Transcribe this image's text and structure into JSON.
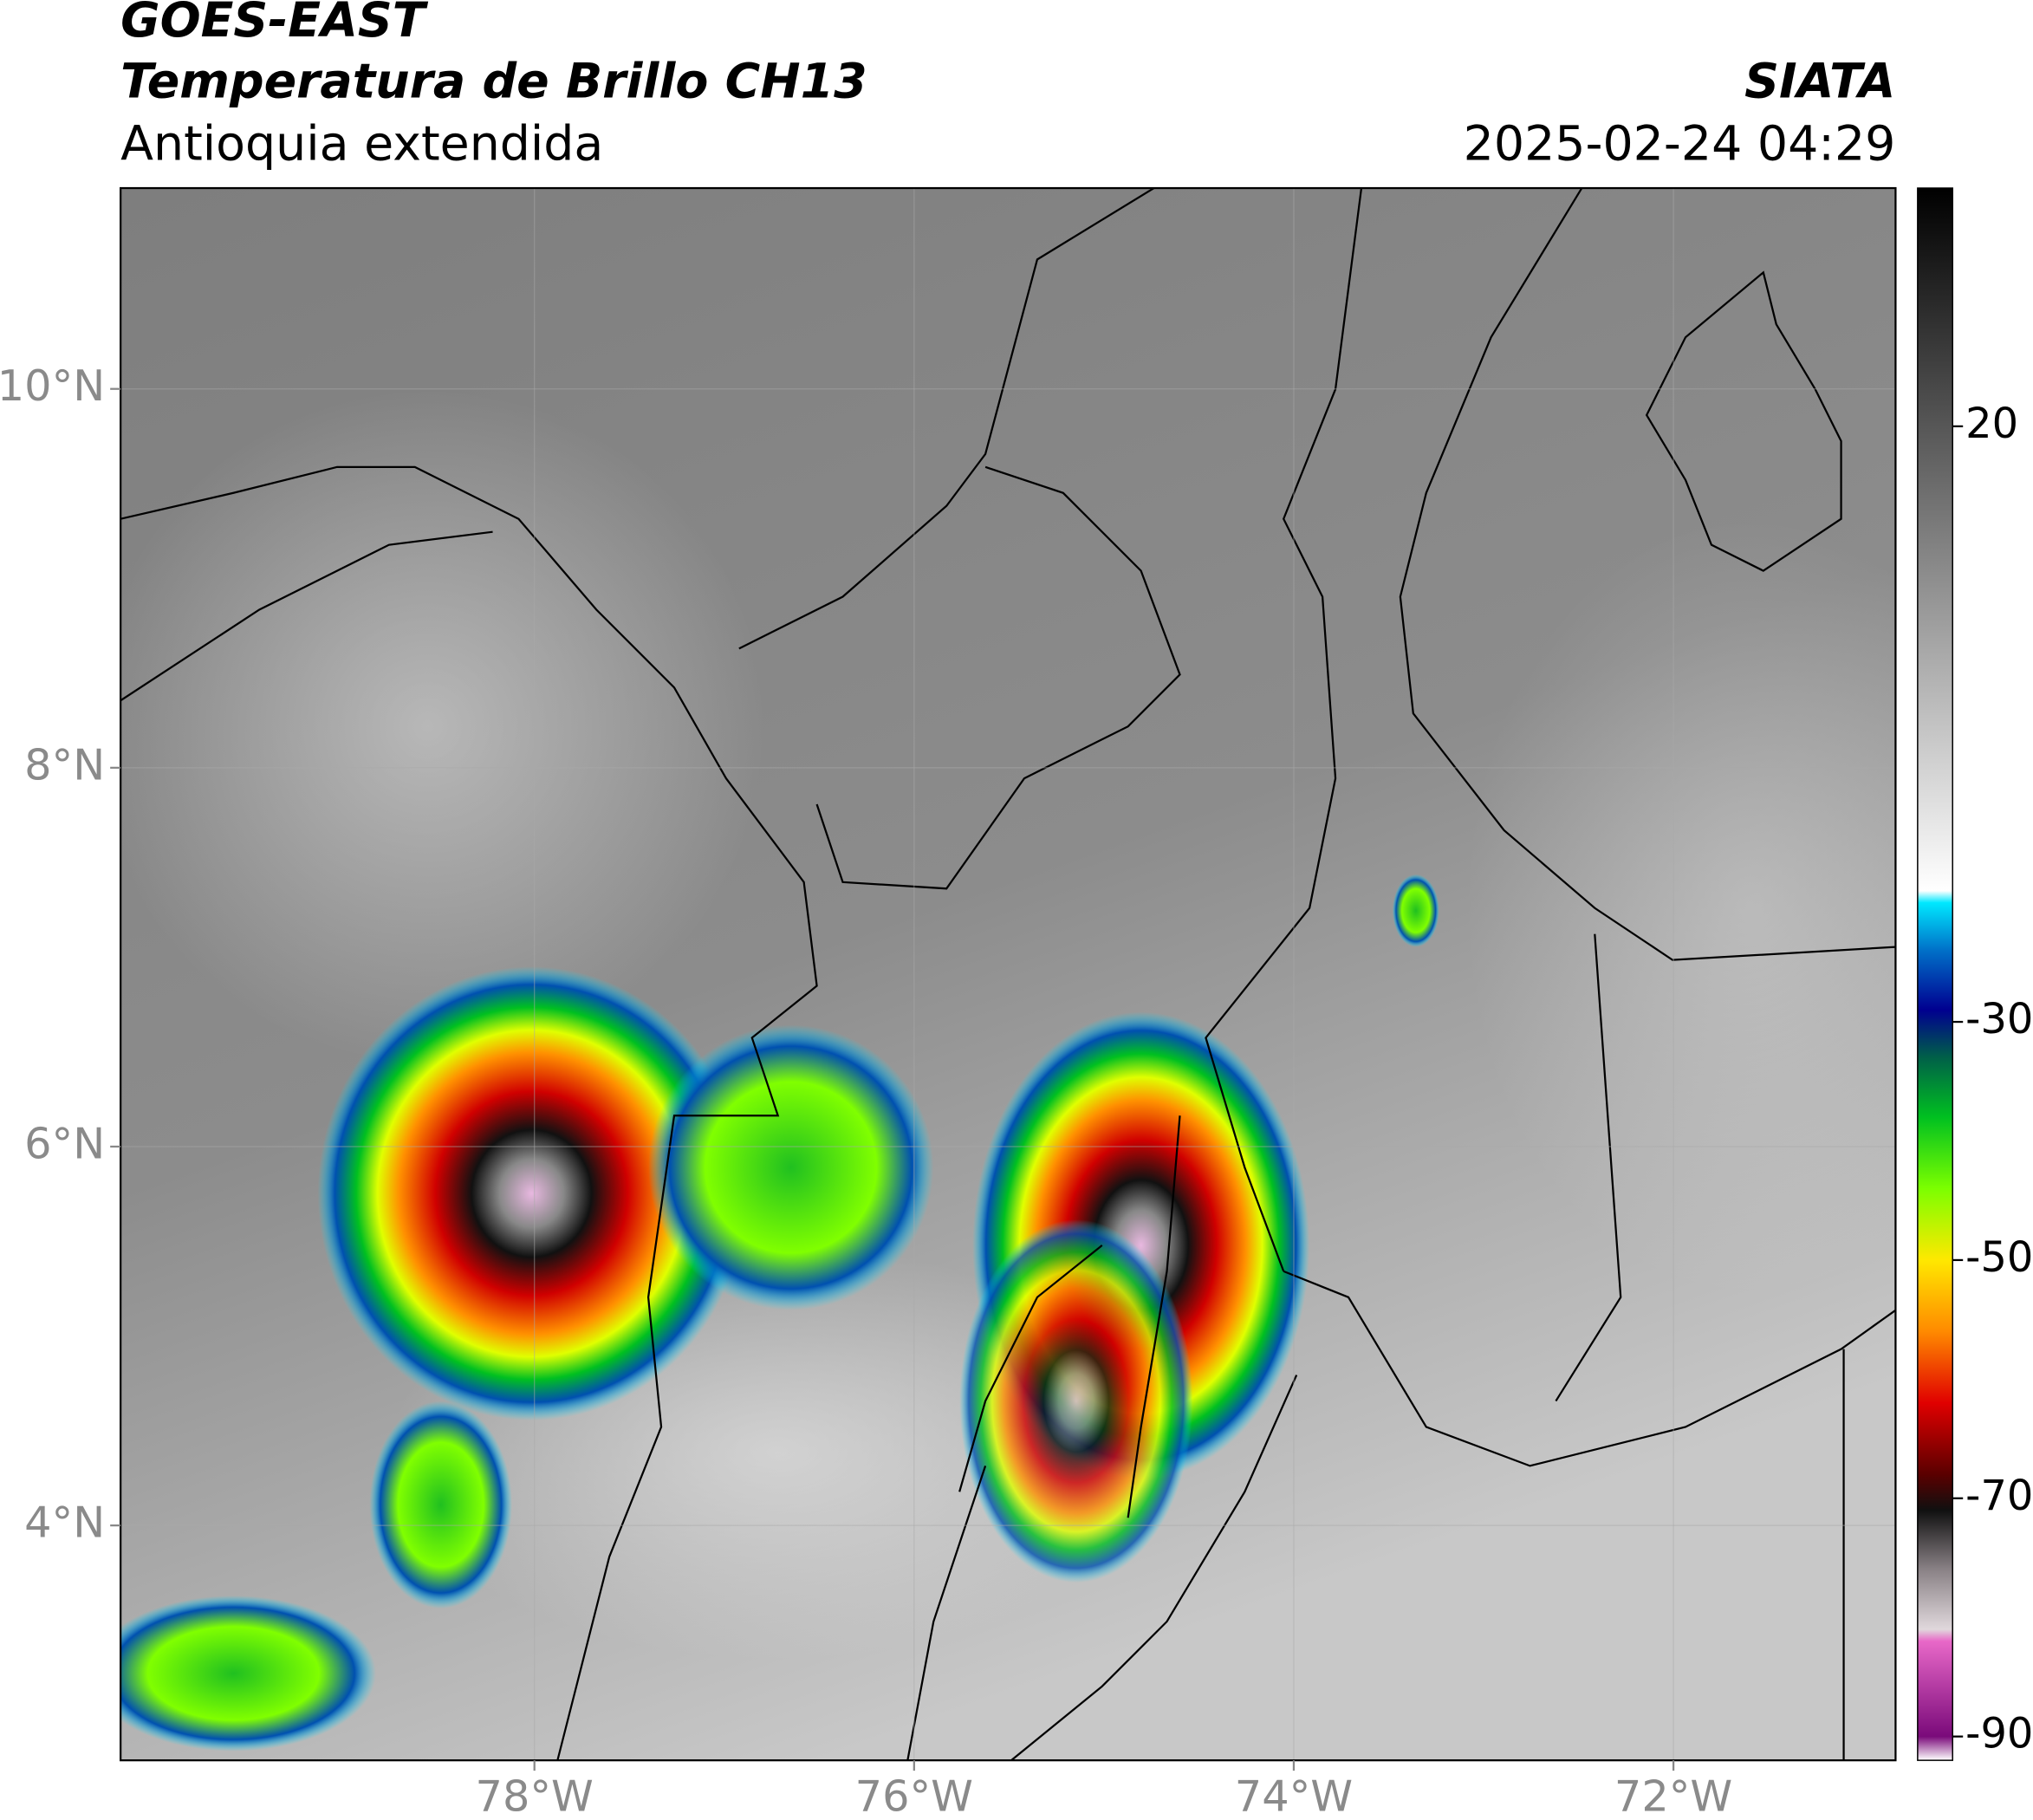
{
  "chart_data": {
    "type": "map",
    "title": "GOES-EAST",
    "subtitle": "Temperatura de Brillo CH13",
    "region": "Antioquia extendida",
    "source": "SIATA",
    "timestamp": "2025-02-24 04:29",
    "xlim": [
      -80.18,
      -70.83
    ],
    "ylim": [
      2.76,
      11.06
    ],
    "xticks": [
      {
        "value": -78,
        "label": "78°W"
      },
      {
        "value": -76,
        "label": "76°W"
      },
      {
        "value": -74,
        "label": "74°W"
      },
      {
        "value": -72,
        "label": "72°W"
      }
    ],
    "yticks": [
      {
        "value": 4,
        "label": "4°N"
      },
      {
        "value": 6,
        "label": "6°N"
      },
      {
        "value": 8,
        "label": "8°N"
      },
      {
        "value": 10,
        "label": "10°N"
      }
    ],
    "grid": true,
    "colorbar": {
      "lim": [
        -92,
        40
      ],
      "ticks": [
        20,
        -30,
        -50,
        -70,
        -90
      ],
      "stops": [
        {
          "value": -92,
          "color": "#ffffff"
        },
        {
          "value": -90,
          "color": "#7a0a7a"
        },
        {
          "value": -82,
          "color": "#e868c8"
        },
        {
          "value": -81,
          "color": "#e0d8dc"
        },
        {
          "value": -76,
          "color": "#8a8286"
        },
        {
          "value": -71,
          "color": "#101010"
        },
        {
          "value": -68,
          "color": "#5a0000"
        },
        {
          "value": -62,
          "color": "#e00000"
        },
        {
          "value": -56,
          "color": "#ff8a00"
        },
        {
          "value": -50,
          "color": "#ffe800"
        },
        {
          "value": -44,
          "color": "#7cff00"
        },
        {
          "value": -38,
          "color": "#00c020"
        },
        {
          "value": -33,
          "color": "#006048"
        },
        {
          "value": -29,
          "color": "#000090"
        },
        {
          "value": -24,
          "color": "#0070c8"
        },
        {
          "value": -20,
          "color": "#00e8ff"
        },
        {
          "value": -19,
          "color": "#ffffff"
        },
        {
          "value": 40,
          "color": "#000000"
        }
      ]
    }
  }
}
